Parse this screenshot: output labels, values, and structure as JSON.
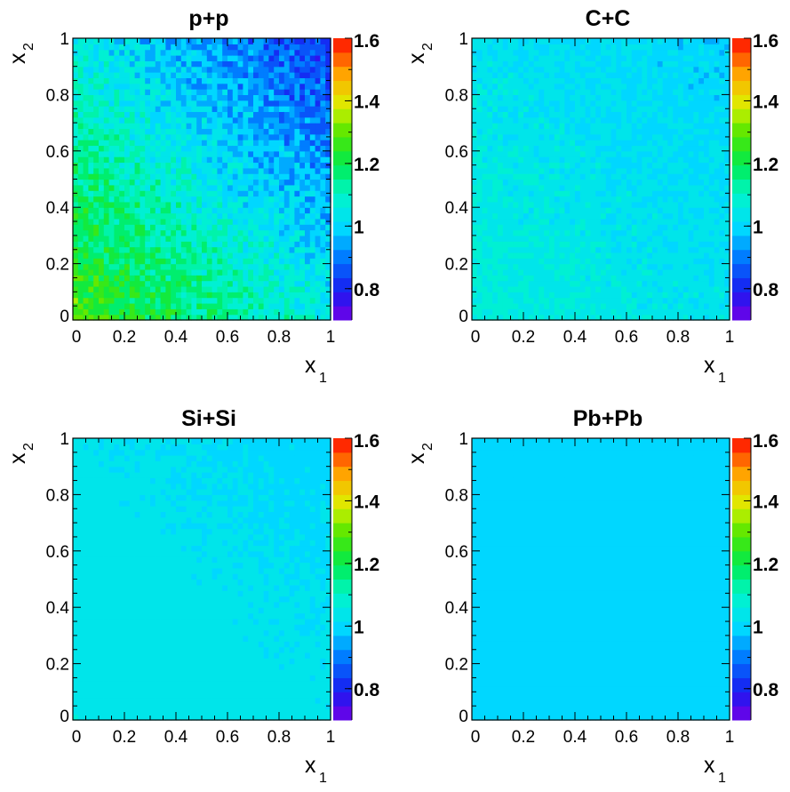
{
  "chart_data": [
    {
      "type": "heatmap",
      "title": "p+p",
      "xlabel": "x",
      "xlabel_sub": "1",
      "ylabel": "x",
      "ylabel_sub": "2",
      "xlim": [
        0,
        1
      ],
      "ylim": [
        0,
        1
      ],
      "xticks": [
        "0",
        "0.2",
        "0.4",
        "0.6",
        "0.8",
        "1"
      ],
      "yticks": [
        "0",
        "0.2",
        "0.4",
        "0.6",
        "0.8",
        "1"
      ],
      "zlim": [
        0.7,
        1.6
      ],
      "colorbar_ticks": [
        "0.8",
        "1",
        "1.2",
        "1.4",
        "1.6"
      ],
      "bins": [
        50,
        50
      ],
      "trend": {
        "corner_low": 1.28,
        "corner_high": 0.82,
        "noise": 0.07
      }
    },
    {
      "type": "heatmap",
      "title": "C+C",
      "xlabel": "x",
      "xlabel_sub": "1",
      "ylabel": "x",
      "ylabel_sub": "2",
      "xlim": [
        0,
        1
      ],
      "ylim": [
        0,
        1
      ],
      "xticks": [
        "0",
        "0.2",
        "0.4",
        "0.6",
        "0.8",
        "1"
      ],
      "yticks": [
        "0",
        "0.2",
        "0.4",
        "0.6",
        "0.8",
        "1"
      ],
      "zlim": [
        0.7,
        1.6
      ],
      "colorbar_ticks": [
        "0.8",
        "1",
        "1.2",
        "1.4",
        "1.6"
      ],
      "bins": [
        50,
        50
      ],
      "trend": {
        "corner_low": 1.07,
        "corner_high": 0.99,
        "noise": 0.035
      }
    },
    {
      "type": "heatmap",
      "title": "Si+Si",
      "xlabel": "x",
      "xlabel_sub": "1",
      "ylabel": "x",
      "ylabel_sub": "2",
      "xlim": [
        0,
        1
      ],
      "ylim": [
        0,
        1
      ],
      "xticks": [
        "0",
        "0.2",
        "0.4",
        "0.6",
        "0.8",
        "1"
      ],
      "yticks": [
        "0",
        "0.2",
        "0.4",
        "0.6",
        "0.8",
        "1"
      ],
      "zlim": [
        0.7,
        1.6
      ],
      "colorbar_ticks": [
        "0.8",
        "1",
        "1.2",
        "1.4",
        "1.6"
      ],
      "bins": [
        50,
        50
      ],
      "trend": {
        "corner_low": 1.05,
        "corner_high": 1.0,
        "noise": 0.012
      }
    },
    {
      "type": "heatmap",
      "title": "Pb+Pb",
      "xlabel": "x",
      "xlabel_sub": "1",
      "ylabel": "x",
      "ylabel_sub": "2",
      "xlim": [
        0,
        1
      ],
      "ylim": [
        0,
        1
      ],
      "xticks": [
        "0",
        "0.2",
        "0.4",
        "0.6",
        "0.8",
        "1"
      ],
      "yticks": [
        "0",
        "0.2",
        "0.4",
        "0.6",
        "0.8",
        "1"
      ],
      "zlim": [
        0.7,
        1.6
      ],
      "colorbar_ticks": [
        "0.8",
        "1",
        "1.2",
        "1.4",
        "1.6"
      ],
      "bins": [
        50,
        50
      ],
      "trend": {
        "corner_low": 1.0,
        "corner_high": 1.0,
        "noise": 0.0
      }
    }
  ]
}
